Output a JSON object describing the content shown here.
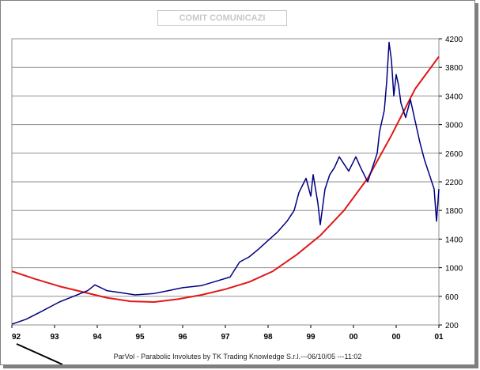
{
  "chart_data": {
    "type": "line",
    "title": "COMIT COMUNICAZI",
    "footer": "ParVol - Parabolic Involutes by TK Trading Knowledge S.r.l.---06/10/05 ---11:02",
    "x_ticks": [
      "92",
      "93",
      "94",
      "95",
      "96",
      "97",
      "98",
      "99",
      "00",
      "00",
      "01"
    ],
    "y_ticks": [
      200,
      600,
      1000,
      1400,
      1800,
      2200,
      2600,
      3000,
      3400,
      3800,
      4200
    ],
    "ylim": [
      200,
      4200
    ],
    "xlim": [
      1992.0,
      2001.0
    ],
    "colors": {
      "price": "#000080",
      "parabola": "#e01818",
      "grid": "#8f8f8f"
    },
    "series": [
      {
        "name": "price",
        "x": [
          1992.0,
          1992.3,
          1992.6,
          1993.0,
          1993.3,
          1993.6,
          1993.75,
          1994.0,
          1994.3,
          1994.6,
          1995.0,
          1995.3,
          1995.6,
          1996.0,
          1996.3,
          1996.6,
          1996.8,
          1997.0,
          1997.2,
          1997.4,
          1997.6,
          1997.8,
          1997.95,
          1998.05,
          1998.2,
          1998.3,
          1998.35,
          1998.45,
          1998.5,
          1998.6,
          1998.7,
          1998.8,
          1998.9,
          1999.0,
          1999.1,
          1999.25,
          1999.35,
          1999.5,
          1999.6,
          1999.7,
          1999.75,
          1999.85,
          1999.9,
          1999.95,
          2000.0,
          2000.05,
          2000.1,
          2000.15,
          2000.2,
          2000.3,
          2000.4,
          2000.5,
          2000.6,
          2000.7,
          2000.8,
          2000.9,
          2000.95,
          2001.0
        ],
        "y": [
          210,
          280,
          380,
          520,
          600,
          680,
          760,
          680,
          650,
          620,
          640,
          680,
          720,
          750,
          810,
          870,
          1080,
          1150,
          1260,
          1380,
          1500,
          1650,
          1800,
          2050,
          2250,
          2000,
          2300,
          1900,
          1600,
          2100,
          2300,
          2400,
          2550,
          2450,
          2350,
          2550,
          2400,
          2200,
          2400,
          2600,
          2900,
          3200,
          3600,
          4150,
          3900,
          3400,
          3700,
          3550,
          3300,
          3100,
          3350,
          3050,
          2750,
          2500,
          2300,
          2100,
          1650,
          2100
        ]
      },
      {
        "name": "parabolic involute",
        "x": [
          1992.0,
          1992.5,
          1993.0,
          1993.5,
          1994.0,
          1994.5,
          1995.0,
          1995.5,
          1996.0,
          1996.5,
          1997.0,
          1997.5,
          1998.0,
          1998.5,
          1999.0,
          1999.5,
          2000.0,
          2000.5,
          2001.0
        ],
        "y": [
          950,
          840,
          740,
          660,
          580,
          530,
          520,
          560,
          620,
          700,
          800,
          950,
          1180,
          1450,
          1800,
          2250,
          2850,
          3500,
          3950
        ]
      }
    ]
  }
}
